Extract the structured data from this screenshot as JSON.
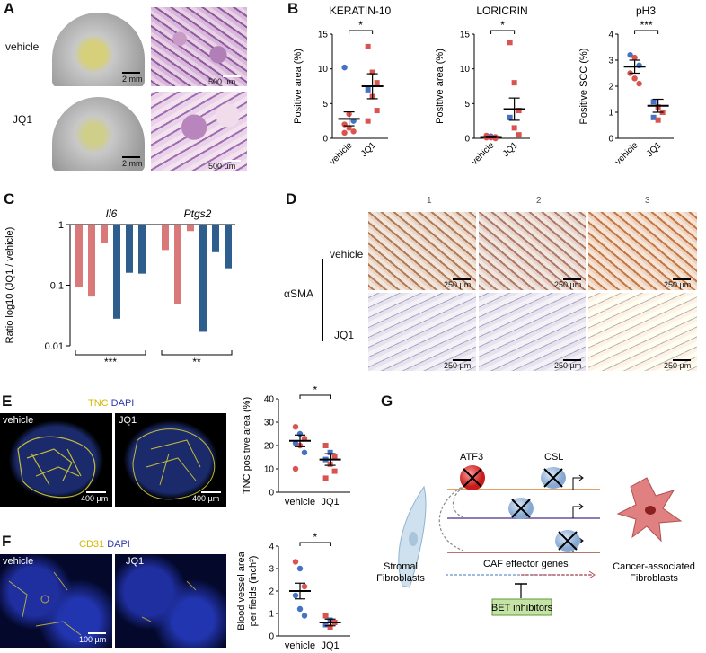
{
  "panels": {
    "A": {
      "letter": "A",
      "row_labels": [
        "vehicle",
        "JQ1"
      ],
      "scale_photo": "2 mm",
      "scale_he": "500 µm"
    },
    "B": {
      "letter": "B"
    },
    "C": {
      "letter": "C",
      "genes": [
        "Il6",
        "Ptgs2"
      ],
      "sig": [
        "***",
        "**"
      ]
    },
    "D": {
      "letter": "D",
      "cols": [
        "1",
        "2",
        "3"
      ],
      "rows": [
        "vehicle",
        "JQ1"
      ],
      "stain": "αSMA",
      "scale": "250 µm"
    },
    "E": {
      "letter": "E",
      "stain_tnc": "TNC",
      "stain_dapi": "DAPI",
      "rows": [
        "vehicle",
        "JQ1"
      ],
      "scale": "400 µm"
    },
    "F": {
      "letter": "F",
      "stain_cd31": "CD31",
      "stain_dapi": "DAPI",
      "rows": [
        "vehicle",
        "JQ1"
      ],
      "scale": "100 µm"
    },
    "G": {
      "letter": "G",
      "atf3": "ATF3",
      "csl": "CSL",
      "caf_genes": "CAF effector genes",
      "stromal": "Stromal\nFibroblasts",
      "caf": "Cancer-associated\nFibroblasts",
      "bet": "BET inhibitors"
    }
  },
  "colors": {
    "vehicle": "#4472c4",
    "jq1": "#d9534f",
    "blue_bar": "#2e5e8e",
    "red_bar": "#d9797a"
  },
  "chart_data": [
    {
      "type": "scatter",
      "title": "KERATIN-10",
      "ylabel": "Positive area (%)",
      "categories": [
        "vehicle",
        "JQ1"
      ],
      "ylim": [
        0,
        15
      ],
      "yticks": [
        0,
        5,
        10,
        15
      ],
      "groups": [
        {
          "name": "vehicle",
          "mean": 2.8,
          "sem": 1.0,
          "points": [
            {
              "v": 10.2,
              "c": "blue",
              "s": "circle"
            },
            {
              "v": 3.5,
              "c": "red",
              "s": "circle"
            },
            {
              "v": 2.5,
              "c": "blue",
              "s": "circle"
            },
            {
              "v": 2.0,
              "c": "red",
              "s": "circle"
            },
            {
              "v": 1.5,
              "c": "red",
              "s": "circle"
            },
            {
              "v": 1.0,
              "c": "red",
              "s": "circle"
            },
            {
              "v": 0.8,
              "c": "red",
              "s": "circle"
            }
          ]
        },
        {
          "name": "JQ1",
          "mean": 7.5,
          "sem": 1.8,
          "points": [
            {
              "v": 13.2,
              "c": "red",
              "s": "square"
            },
            {
              "v": 9.5,
              "c": "red",
              "s": "square"
            },
            {
              "v": 8.0,
              "c": "red",
              "s": "square"
            },
            {
              "v": 7.0,
              "c": "blue",
              "s": "square"
            },
            {
              "v": 6.0,
              "c": "red",
              "s": "square"
            },
            {
              "v": 4.0,
              "c": "red",
              "s": "square"
            },
            {
              "v": 2.5,
              "c": "red",
              "s": "square"
            }
          ]
        }
      ],
      "sig": "*"
    },
    {
      "type": "scatter",
      "title": "LORICRIN",
      "ylabel": "Positive area (%)",
      "categories": [
        "vehicle",
        "JQ1"
      ],
      "ylim": [
        0,
        15
      ],
      "yticks": [
        0,
        5,
        10,
        15
      ],
      "groups": [
        {
          "name": "vehicle",
          "mean": 0.2,
          "sem": 0.1,
          "points": [
            {
              "v": 0.4,
              "c": "red",
              "s": "circle"
            },
            {
              "v": 0.3,
              "c": "blue",
              "s": "circle"
            },
            {
              "v": 0.2,
              "c": "red",
              "s": "circle"
            },
            {
              "v": 0.1,
              "c": "red",
              "s": "circle"
            },
            {
              "v": 0.1,
              "c": "red",
              "s": "circle"
            },
            {
              "v": 0.0,
              "c": "red",
              "s": "circle"
            }
          ]
        },
        {
          "name": "JQ1",
          "mean": 4.2,
          "sem": 1.6,
          "points": [
            {
              "v": 13.8,
              "c": "red",
              "s": "square"
            },
            {
              "v": 8.0,
              "c": "red",
              "s": "square"
            },
            {
              "v": 4.0,
              "c": "red",
              "s": "square"
            },
            {
              "v": 3.0,
              "c": "blue",
              "s": "square"
            },
            {
              "v": 1.5,
              "c": "red",
              "s": "square"
            },
            {
              "v": 0.5,
              "c": "red",
              "s": "square"
            }
          ]
        }
      ],
      "sig": "*"
    },
    {
      "type": "scatter",
      "title": "pH3",
      "ylabel": "Positive SCC (%)",
      "categories": [
        "vehicle",
        "JQ1"
      ],
      "ylim": [
        0,
        4
      ],
      "yticks": [
        0,
        1,
        2,
        3,
        4
      ],
      "groups": [
        {
          "name": "vehicle",
          "mean": 2.75,
          "sem": 0.25,
          "points": [
            {
              "v": 3.2,
              "c": "blue",
              "s": "circle"
            },
            {
              "v": 3.1,
              "c": "red",
              "s": "circle"
            },
            {
              "v": 2.8,
              "c": "blue",
              "s": "circle"
            },
            {
              "v": 2.5,
              "c": "red",
              "s": "circle"
            },
            {
              "v": 2.3,
              "c": "red",
              "s": "circle"
            },
            {
              "v": 2.1,
              "c": "red",
              "s": "circle"
            }
          ]
        },
        {
          "name": "JQ1",
          "mean": 1.25,
          "sem": 0.25,
          "points": [
            {
              "v": 1.4,
              "c": "blue",
              "s": "square"
            },
            {
              "v": 1.2,
              "c": "red",
              "s": "square"
            },
            {
              "v": 1.0,
              "c": "red",
              "s": "square"
            },
            {
              "v": 0.8,
              "c": "blue",
              "s": "square"
            },
            {
              "v": 0.7,
              "c": "red",
              "s": "square"
            }
          ]
        }
      ],
      "sig": "***"
    },
    {
      "type": "bar",
      "title": "",
      "ylabel": "Ratio log10 (JQ1 / vehicle)",
      "yscale": "log",
      "ylim": [
        0.01,
        1
      ],
      "yticks": [
        "1",
        "0.1",
        "0.01"
      ],
      "groups": [
        {
          "name": "Il6",
          "values": [
            0.095,
            0.065,
            0.5,
            0.028,
            0.16,
            0.155
          ],
          "colors": [
            "red",
            "red",
            "red",
            "blue",
            "blue",
            "blue"
          ]
        },
        {
          "name": "Ptgs2",
          "values": [
            0.38,
            0.048,
            0.78,
            0.017,
            0.35,
            0.19
          ],
          "colors": [
            "red",
            "red",
            "red",
            "blue",
            "blue",
            "blue"
          ]
        }
      ]
    },
    {
      "type": "scatter",
      "title": "",
      "ylabel": "TNC positive area (%)",
      "categories": [
        "vehicle",
        "JQ1"
      ],
      "ylim": [
        0,
        40
      ],
      "yticks": [
        0,
        10,
        20,
        30,
        40
      ],
      "groups": [
        {
          "name": "vehicle",
          "mean": 22,
          "sem": 2.5,
          "points": [
            {
              "v": 28,
              "c": "red",
              "s": "circle"
            },
            {
              "v": 25,
              "c": "blue",
              "s": "circle"
            },
            {
              "v": 23,
              "c": "red",
              "s": "circle"
            },
            {
              "v": 21,
              "c": "blue",
              "s": "circle"
            },
            {
              "v": 20,
              "c": "red",
              "s": "circle"
            },
            {
              "v": 17,
              "c": "blue",
              "s": "circle"
            },
            {
              "v": 10,
              "c": "red",
              "s": "circle"
            }
          ]
        },
        {
          "name": "JQ1",
          "mean": 14,
          "sem": 2.5,
          "points": [
            {
              "v": 20,
              "c": "red",
              "s": "square"
            },
            {
              "v": 17,
              "c": "blue",
              "s": "square"
            },
            {
              "v": 15,
              "c": "red",
              "s": "square"
            },
            {
              "v": 14,
              "c": "blue",
              "s": "square"
            },
            {
              "v": 12,
              "c": "red",
              "s": "square"
            },
            {
              "v": 9,
              "c": "red",
              "s": "square"
            },
            {
              "v": 6,
              "c": "red",
              "s": "square"
            }
          ]
        }
      ],
      "sig": "*"
    },
    {
      "type": "scatter",
      "title": "",
      "ylabel": "Blood vessel area per fields (inch²)",
      "categories": [
        "vehicle",
        "JQ1"
      ],
      "ylim": [
        0,
        4
      ],
      "yticks": [
        0,
        1,
        2,
        3,
        4
      ],
      "groups": [
        {
          "name": "vehicle",
          "mean": 2.0,
          "sem": 0.35,
          "points": [
            {
              "v": 3.3,
              "c": "red",
              "s": "circle"
            },
            {
              "v": 3.0,
              "c": "blue",
              "s": "circle"
            },
            {
              "v": 2.2,
              "c": "red",
              "s": "circle"
            },
            {
              "v": 1.8,
              "c": "blue",
              "s": "circle"
            },
            {
              "v": 1.2,
              "c": "blue",
              "s": "circle"
            },
            {
              "v": 0.9,
              "c": "blue",
              "s": "circle"
            }
          ]
        },
        {
          "name": "JQ1",
          "mean": 0.6,
          "sem": 0.15,
          "points": [
            {
              "v": 0.9,
              "c": "red",
              "s": "square"
            },
            {
              "v": 0.7,
              "c": "blue",
              "s": "square"
            },
            {
              "v": 0.6,
              "c": "red",
              "s": "square"
            },
            {
              "v": 0.5,
              "c": "blue",
              "s": "square"
            },
            {
              "v": 0.4,
              "c": "red",
              "s": "square"
            }
          ]
        }
      ],
      "sig": "*"
    }
  ]
}
